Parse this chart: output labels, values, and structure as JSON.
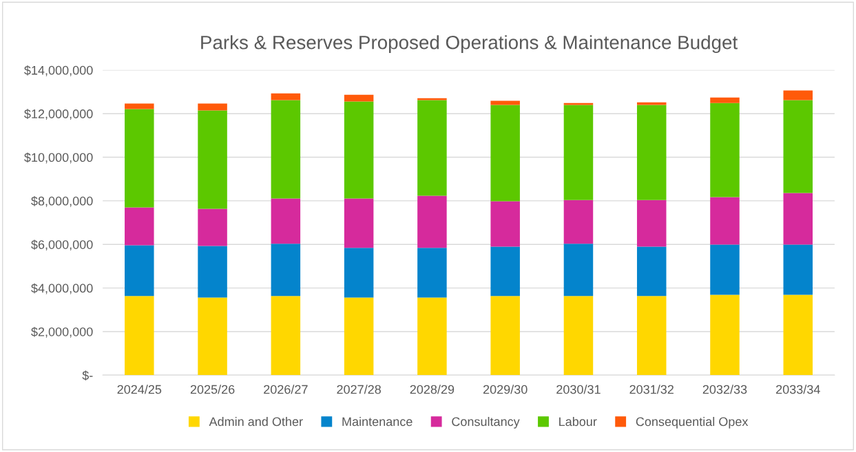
{
  "chart_data": {
    "type": "bar",
    "title": "Parks & Reserves Proposed Operations & Maintenance Budget",
    "categories": [
      "2024/25",
      "2025/26",
      "2026/27",
      "2027/28",
      "2028/29",
      "2029/30",
      "2030/31",
      "2031/32",
      "2032/33",
      "2033/34"
    ],
    "stacked": true,
    "series": [
      {
        "name": "Admin and Other",
        "color": "#ffd700",
        "values": [
          3630000,
          3560000,
          3630000,
          3560000,
          3560000,
          3630000,
          3630000,
          3630000,
          3690000,
          3690000
        ]
      },
      {
        "name": "Maintenance",
        "color": "#0484cc",
        "values": [
          2330000,
          2370000,
          2400000,
          2280000,
          2280000,
          2270000,
          2400000,
          2270000,
          2300000,
          2300000
        ]
      },
      {
        "name": "Consultancy",
        "color": "#d62a9c",
        "values": [
          1740000,
          1700000,
          2080000,
          2270000,
          2390000,
          2080000,
          2010000,
          2140000,
          2180000,
          2370000
        ]
      },
      {
        "name": "Labour",
        "color": "#5cc800",
        "values": [
          4510000,
          4520000,
          4510000,
          4450000,
          4390000,
          4420000,
          4360000,
          4360000,
          4320000,
          4260000
        ]
      },
      {
        "name": "Consequential Opex",
        "color": "#ff5a0a",
        "values": [
          250000,
          310000,
          310000,
          310000,
          90000,
          190000,
          90000,
          120000,
          250000,
          440000
        ]
      }
    ],
    "ylim": [
      0,
      14000000
    ],
    "yticks": [
      {
        "value": 0,
        "label": "$-"
      },
      {
        "value": 2000000,
        "label": "$2,000,000"
      },
      {
        "value": 4000000,
        "label": "$4,000,000"
      },
      {
        "value": 6000000,
        "label": "$6,000,000"
      },
      {
        "value": 8000000,
        "label": "$8,000,000"
      },
      {
        "value": 10000000,
        "label": "$10,000,000"
      },
      {
        "value": 12000000,
        "label": "$12,000,000"
      },
      {
        "value": 14000000,
        "label": "$14,000,000"
      }
    ],
    "grid": "y",
    "legend": "bottom"
  }
}
